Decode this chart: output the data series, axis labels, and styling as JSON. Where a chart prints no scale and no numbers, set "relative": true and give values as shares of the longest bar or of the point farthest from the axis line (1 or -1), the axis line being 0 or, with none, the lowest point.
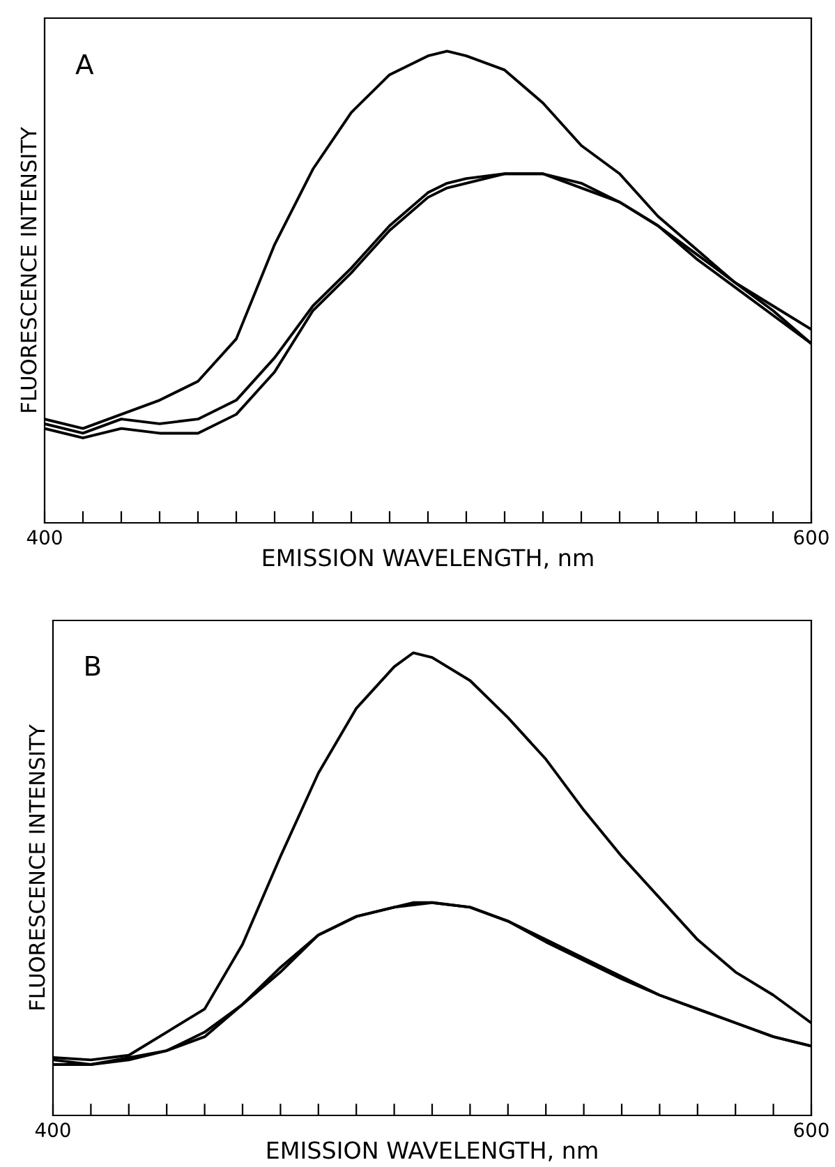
{
  "chart_data": [
    {
      "type": "line",
      "relative": true,
      "xlabel": "EMISSION WAVELENGTH, nm",
      "ylabel": "FLUORESCENCE INTENSITY",
      "annotations": [
        "A"
      ],
      "xlim": [
        400,
        600
      ],
      "xticks": [
        400,
        {
          "value": 410,
          "label": null
        },
        {
          "value": 420,
          "label": null
        },
        {
          "value": 430,
          "label": null
        },
        {
          "value": 440,
          "label": null
        },
        {
          "value": 450,
          "label": null
        },
        {
          "value": 460,
          "label": null
        },
        {
          "value": 470,
          "label": null
        },
        {
          "value": 480,
          "label": null
        },
        {
          "value": 490,
          "label": null
        },
        {
          "value": 500,
          "label": null
        },
        {
          "value": 510,
          "label": null
        },
        {
          "value": 520,
          "label": null
        },
        {
          "value": 530,
          "label": null
        },
        {
          "value": 540,
          "label": null
        },
        {
          "value": 550,
          "label": null
        },
        {
          "value": 560,
          "label": null
        },
        {
          "value": 570,
          "label": null
        },
        {
          "value": 580,
          "label": null
        },
        {
          "value": 590,
          "label": null
        },
        600
      ],
      "x": [
        400,
        410,
        420,
        430,
        440,
        450,
        460,
        470,
        480,
        490,
        500,
        505,
        510,
        520,
        530,
        540,
        550,
        560,
        570,
        580,
        590,
        600
      ],
      "series": [
        {
          "color": "#000000",
          "values": [
            0.22,
            0.2,
            0.23,
            0.26,
            0.3,
            0.39,
            0.59,
            0.75,
            0.87,
            0.95,
            0.99,
            1.0,
            0.99,
            0.96,
            0.89,
            0.8,
            0.74,
            0.65,
            0.58,
            0.51,
            0.46,
            0.41
          ]
        },
        {
          "color": "#000000",
          "values": [
            0.21,
            0.19,
            0.22,
            0.21,
            0.22,
            0.26,
            0.35,
            0.46,
            0.54,
            0.63,
            0.7,
            0.72,
            0.73,
            0.74,
            0.74,
            0.72,
            0.68,
            0.63,
            0.57,
            0.51,
            0.45,
            0.38
          ]
        },
        {
          "color": "#000000",
          "values": [
            0.2,
            0.18,
            0.2,
            0.19,
            0.19,
            0.23,
            0.32,
            0.45,
            0.53,
            0.62,
            0.69,
            0.71,
            0.72,
            0.74,
            0.74,
            0.71,
            0.68,
            0.63,
            0.56,
            0.5,
            0.44,
            0.38
          ]
        }
      ]
    },
    {
      "type": "line",
      "relative": true,
      "xlabel": "EMISSION WAVELENGTH, nm",
      "ylabel": "FLUORESCENCE INTENSITY",
      "annotations": [
        "B"
      ],
      "xlim": [
        400,
        600
      ],
      "xticks": [
        400,
        {
          "value": 410,
          "label": null
        },
        {
          "value": 420,
          "label": null
        },
        {
          "value": 430,
          "label": null
        },
        {
          "value": 440,
          "label": null
        },
        {
          "value": 450,
          "label": null
        },
        {
          "value": 460,
          "label": null
        },
        {
          "value": 470,
          "label": null
        },
        {
          "value": 480,
          "label": null
        },
        {
          "value": 490,
          "label": null
        },
        {
          "value": 500,
          "label": null
        },
        {
          "value": 510,
          "label": null
        },
        {
          "value": 520,
          "label": null
        },
        {
          "value": 530,
          "label": null
        },
        {
          "value": 540,
          "label": null
        },
        {
          "value": 550,
          "label": null
        },
        {
          "value": 560,
          "label": null
        },
        {
          "value": 570,
          "label": null
        },
        {
          "value": 580,
          "label": null
        },
        {
          "value": 590,
          "label": null
        },
        600
      ],
      "x": [
        400,
        410,
        420,
        430,
        440,
        450,
        460,
        470,
        480,
        490,
        495,
        500,
        510,
        520,
        530,
        540,
        550,
        560,
        570,
        580,
        590,
        600
      ],
      "series": [
        {
          "color": "#000000",
          "values": [
            0.125,
            0.12,
            0.13,
            0.18,
            0.23,
            0.37,
            0.56,
            0.74,
            0.88,
            0.97,
            1.0,
            0.99,
            0.94,
            0.86,
            0.77,
            0.66,
            0.56,
            0.47,
            0.38,
            0.31,
            0.26,
            0.2
          ]
        },
        {
          "color": "#000000",
          "values": [
            0.11,
            0.11,
            0.125,
            0.14,
            0.17,
            0.24,
            0.32,
            0.39,
            0.43,
            0.45,
            0.455,
            0.46,
            0.45,
            0.42,
            0.375,
            0.335,
            0.295,
            0.26,
            0.23,
            0.2,
            0.17,
            0.15
          ]
        },
        {
          "color": "#000000",
          "values": [
            0.12,
            0.11,
            0.12,
            0.14,
            0.18,
            0.24,
            0.31,
            0.39,
            0.43,
            0.45,
            0.46,
            0.46,
            0.45,
            0.42,
            0.38,
            0.34,
            0.3,
            0.26,
            0.23,
            0.2,
            0.17,
            0.15
          ]
        }
      ]
    }
  ]
}
